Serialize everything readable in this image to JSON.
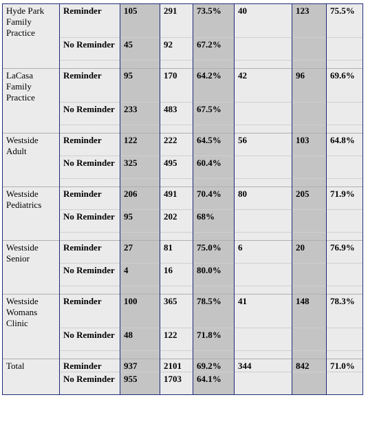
{
  "rows": [
    {
      "practice": "Hyde Park Family Practice",
      "r": {
        "label": "Reminder",
        "a": "105",
        "b": "291",
        "c": "73.5%",
        "d": "40",
        "e": "123",
        "f": "75.5%"
      },
      "n": {
        "label": "No Reminder",
        "a": "45",
        "b": "92",
        "c": "67.2%"
      }
    },
    {
      "practice": "LaCasa Family Practice",
      "r": {
        "label": "Reminder",
        "a": "95",
        "b": "170",
        "c": "64.2%",
        "d": "42",
        "e": "96",
        "f": "69.6%"
      },
      "n": {
        "label": "No Reminder",
        "a": "233",
        "b": "483",
        "c": "67.5%"
      }
    },
    {
      "practice": "Westside Adult",
      "r": {
        "label": "Reminder",
        "a": "122",
        "b": "222",
        "c": "64.5%",
        "d": "56",
        "e": "103",
        "f": "64.8%"
      },
      "n": {
        "label": "No Reminder",
        "a": "325",
        "b": "495",
        "c": "60.4%"
      }
    },
    {
      "practice": "Westside Pediatrics",
      "r": {
        "label": "Reminder",
        "a": "206",
        "b": "491",
        "c": "70.4%",
        "d": "80",
        "e": "205",
        "f": "71.9%"
      },
      "n": {
        "label": "No Reminder",
        "a": "95",
        "b": "202",
        "c": "68%"
      }
    },
    {
      "practice": "Westside Senior",
      "r": {
        "label": "Reminder",
        "a": "27",
        "b": "81",
        "c": "75.0%",
        "d": "6",
        "e": "20",
        "f": "76.9%"
      },
      "n": {
        "label": "No Reminder",
        "a": "4",
        "b": "16",
        "c": "80.0%"
      }
    },
    {
      "practice": "Westside Womans Clinic",
      "r": {
        "label": "Reminder",
        "a": "100",
        "b": "365",
        "c": "78.5%",
        "d": "41",
        "e": "148",
        "f": "78.3%"
      },
      "n": {
        "label": "No Reminder",
        "a": "48",
        "b": "122",
        "c": "71.8%"
      }
    }
  ],
  "total": {
    "practice": "Total",
    "r": {
      "label": "Reminder",
      "a": "937",
      "b": "2101",
      "c": "69.2%",
      "d": "344",
      "e": "842",
      "f": "71.0%"
    },
    "n": {
      "label": "No Reminder",
      "a": "955",
      "b": "1703",
      "c": "64.1%"
    }
  }
}
